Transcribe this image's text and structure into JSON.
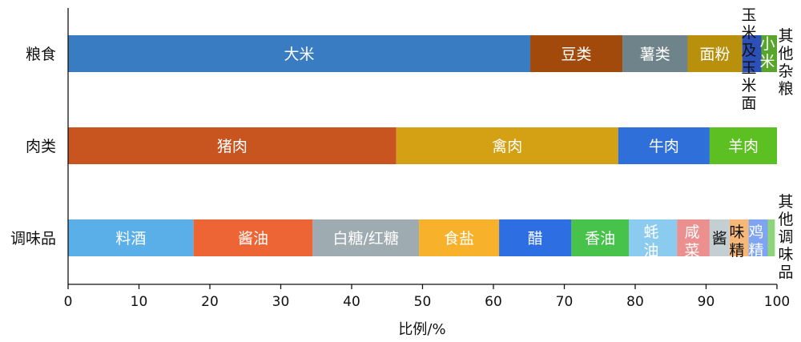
{
  "chart_data": {
    "type": "bar",
    "orientation": "horizontal",
    "stacked": true,
    "xlabel": "比例/%",
    "xlim": [
      0,
      100
    ],
    "xticks": [
      "0",
      "10",
      "20",
      "30",
      "40",
      "50",
      "60",
      "70",
      "80",
      "90",
      "100"
    ],
    "grid": false,
    "categories": [
      {
        "name": "粮食",
        "segments": [
          {
            "label": "大米",
            "value": 65.2,
            "color": "#3a7cc2"
          },
          {
            "label": "豆类",
            "value": 13.0,
            "color": "#a24a0c"
          },
          {
            "label": "薯类",
            "value": 9.2,
            "color": "#6f848a"
          },
          {
            "label": "面粉",
            "value": 7.7,
            "color": "#b8900c"
          },
          {
            "label": "玉米及玉米面",
            "value": 2.7,
            "color": "#2d4fb8"
          },
          {
            "label": "小米",
            "value": 2.2,
            "color": "#57a52a"
          },
          {
            "label": "其他杂粮",
            "value": 0.0,
            "color": "#3c7fc4"
          }
        ]
      },
      {
        "name": "肉类",
        "segments": [
          {
            "label": "猪肉",
            "value": 46.3,
            "color": "#c8541f"
          },
          {
            "label": "禽肉",
            "value": 31.3,
            "color": "#d4a114"
          },
          {
            "label": "牛肉",
            "value": 12.9,
            "color": "#2f6fd9"
          },
          {
            "label": "羊肉",
            "value": 9.5,
            "color": "#5cbf22"
          }
        ]
      },
      {
        "name": "调味品",
        "segments": [
          {
            "label": "料酒",
            "value": 17.7,
            "color": "#5aafe9"
          },
          {
            "label": "酱油",
            "value": 16.8,
            "color": "#ee6535"
          },
          {
            "label": "白糖/红糖",
            "value": 15.0,
            "color": "#9eabb0"
          },
          {
            "label": "食盐",
            "value": 11.3,
            "color": "#f7b12a"
          },
          {
            "label": "醋",
            "value": 10.2,
            "color": "#2d6fe3"
          },
          {
            "label": "香油",
            "value": 8.1,
            "color": "#47c24a"
          },
          {
            "label": "蚝油",
            "value": 6.8,
            "color": "#8ccbf0"
          },
          {
            "label": "咸菜",
            "value": 4.6,
            "color": "#eb8f8f"
          },
          {
            "label": "酱",
            "value": 2.8,
            "color": "#c4cfd3"
          },
          {
            "label": "味精",
            "value": 2.7,
            "color": "#f5b878"
          },
          {
            "label": "鸡精",
            "value": 2.7,
            "color": "#7fa4f2"
          },
          {
            "label": "其他调味品",
            "value": 1.0,
            "color": "#8ed47a"
          }
        ]
      }
    ]
  }
}
